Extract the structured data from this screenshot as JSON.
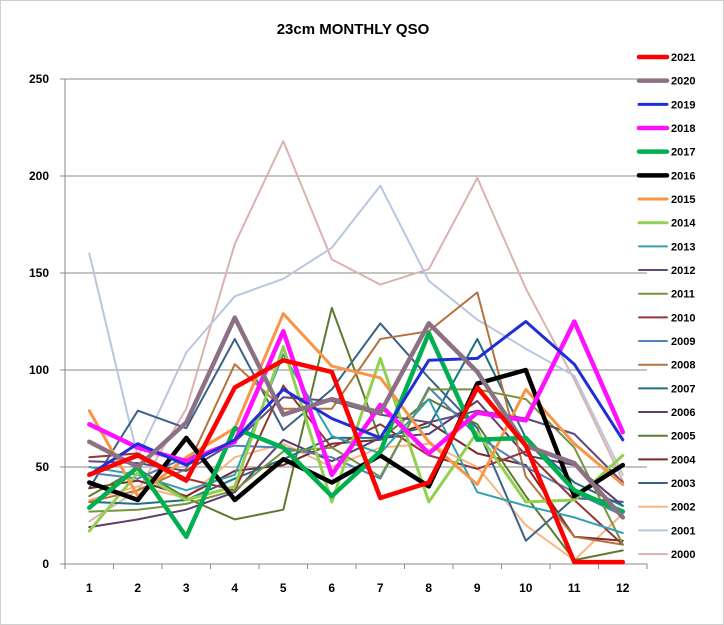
{
  "chart_data": {
    "type": "line",
    "title": "23cm MONTHLY QSO",
    "xlabel": "",
    "ylabel": "",
    "categories": [
      "1",
      "2",
      "3",
      "4",
      "5",
      "6",
      "7",
      "8",
      "9",
      "10",
      "11",
      "12"
    ],
    "ylim": [
      0,
      250
    ],
    "yticks": [
      0,
      50,
      100,
      150,
      200,
      250
    ],
    "grid": "horizontal",
    "legend_position": "right",
    "series": [
      {
        "name": "2021",
        "color": "#ff0000",
        "width": 4.5,
        "values": [
          46,
          56,
          43,
          91,
          105,
          99,
          34,
          42,
          91,
          61,
          1,
          1
        ]
      },
      {
        "name": "2020",
        "color": "#8c7185",
        "width": 4.5,
        "values": [
          63,
          50,
          73,
          127,
          77,
          85,
          78,
          124,
          99,
          61,
          52,
          24
        ]
      },
      {
        "name": "2019",
        "color": "#1f2ed6",
        "width": 3,
        "values": [
          46,
          62,
          51,
          64,
          90,
          75,
          65,
          105,
          106,
          125,
          103,
          64
        ]
      },
      {
        "name": "2018",
        "color": "#ff11ff",
        "width": 4.5,
        "values": [
          72,
          60,
          53,
          63,
          120,
          46,
          82,
          57,
          78,
          74,
          125,
          68
        ]
      },
      {
        "name": "2017",
        "color": "#00b050",
        "width": 4.5,
        "values": [
          29,
          50,
          14,
          70,
          60,
          35,
          58,
          119,
          64,
          65,
          38,
          27
        ]
      },
      {
        "name": "2016",
        "color": "#000000",
        "width": 4.5,
        "values": [
          42,
          33,
          65,
          33,
          54,
          42,
          56,
          40,
          93,
          100,
          35,
          51
        ]
      },
      {
        "name": "2015",
        "color": "#f79646",
        "width": 3,
        "values": [
          79,
          35,
          55,
          70,
          129,
          102,
          96,
          63,
          41,
          90,
          62,
          41
        ]
      },
      {
        "name": "2014",
        "color": "#92d050",
        "width": 3,
        "values": [
          17,
          47,
          33,
          40,
          112,
          32,
          106,
          32,
          68,
          32,
          33,
          56
        ]
      },
      {
        "name": "2013",
        "color": "#31a0b0",
        "width": 2,
        "values": [
          50,
          46,
          38,
          46,
          108,
          66,
          57,
          85,
          37,
          30,
          24,
          16
        ]
      },
      {
        "name": "2012",
        "color": "#604a7b",
        "width": 2,
        "values": [
          53,
          52,
          48,
          63,
          86,
          84,
          77,
          73,
          79,
          75,
          67,
          42
        ]
      },
      {
        "name": "2011",
        "color": "#77933c",
        "width": 2,
        "values": [
          27,
          28,
          31,
          38,
          58,
          60,
          45,
          90,
          90,
          85,
          60,
          10
        ]
      },
      {
        "name": "2010",
        "color": "#953735",
        "width": 2,
        "values": [
          55,
          57,
          44,
          38,
          92,
          60,
          72,
          56,
          49,
          58,
          33,
          10
        ]
      },
      {
        "name": "2009",
        "color": "#4f81bd",
        "width": 2,
        "values": [
          47,
          44,
          55,
          61,
          60,
          55,
          44,
          91,
          66,
          50,
          37,
          25
        ]
      },
      {
        "name": "2008",
        "color": "#b7723e",
        "width": 2,
        "values": [
          32,
          38,
          49,
          103,
          80,
          80,
          116,
          120,
          140,
          45,
          14,
          10
        ]
      },
      {
        "name": "2007",
        "color": "#207080",
        "width": 2,
        "values": [
          32,
          31,
          33,
          44,
          54,
          65,
          65,
          71,
          116,
          65,
          42,
          30
        ]
      },
      {
        "name": "2006",
        "color": "#5f3c6e",
        "width": 2,
        "values": [
          19,
          23,
          28,
          37,
          64,
          53,
          65,
          67,
          84,
          56,
          51,
          30
        ]
      },
      {
        "name": "2005",
        "color": "#5f7a30",
        "width": 2,
        "values": [
          35,
          49,
          34,
          23,
          28,
          132,
          64,
          85,
          72,
          35,
          2,
          7
        ]
      },
      {
        "name": "2004",
        "color": "#7a2a28",
        "width": 2,
        "values": [
          39,
          43,
          35,
          48,
          51,
          62,
          64,
          73,
          57,
          51,
          14,
          12
        ]
      },
      {
        "name": "2003",
        "color": "#3a6288",
        "width": 2,
        "values": [
          39,
          79,
          70,
          116,
          69,
          90,
          124,
          96,
          70,
          12,
          34,
          32
        ]
      },
      {
        "name": "2002",
        "color": "#fab583",
        "width": 2,
        "values": [
          33,
          40,
          34,
          55,
          62,
          50,
          60,
          62,
          50,
          20,
          2,
          26
        ]
      },
      {
        "name": "2001",
        "color": "#b8c7dd",
        "width": 2,
        "values": [
          160,
          55,
          109,
          138,
          147,
          163,
          195,
          146,
          126,
          111,
          97,
          46
        ]
      },
      {
        "name": "2000",
        "color": "#dab3ae",
        "width": 2,
        "values": [
          22,
          38,
          80,
          165,
          218,
          157,
          144,
          152,
          199,
          142,
          95,
          43
        ]
      }
    ]
  }
}
